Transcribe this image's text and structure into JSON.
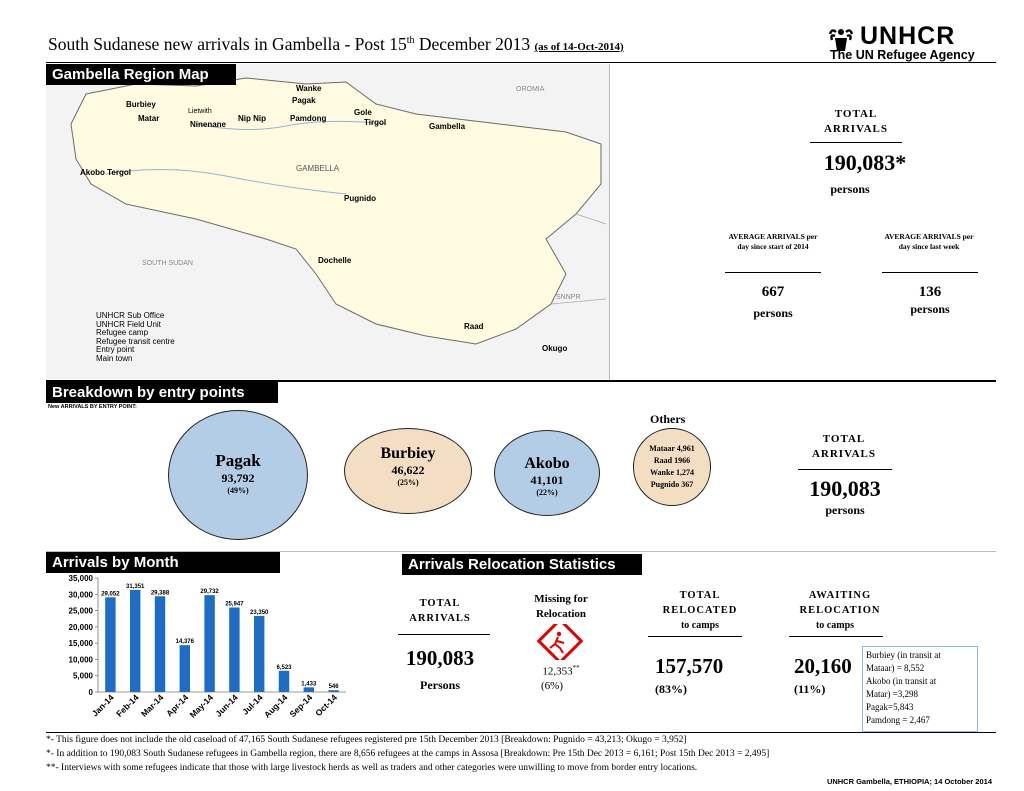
{
  "header": {
    "title_main": "South Sudanese new arrivals in Gambella - Post 15",
    "title_sup": "th",
    "title_rest": " December 2013",
    "asof": "(as of 14-Oct-2014)",
    "logo_name": "UNHCR",
    "logo_tagline": "The UN Refugee Agency"
  },
  "map": {
    "section_label": "Gambella Region Map",
    "places": {
      "burbiey": "Burbiey",
      "matar": "Matar",
      "wanke": "Wanke",
      "pagak": "Pagak",
      "lietwith": "Lietwith",
      "nip_nip": "Nip Nip",
      "ninenane": "Ninenane",
      "pamdong": "Pamdong",
      "gole": "Gole",
      "tirgol": "Tirgol",
      "gambella_town": "Gambella",
      "gambella_region": "GAMBELLA",
      "akobo_tergol": "Akobo Tergol",
      "pugnido": "Pugnido",
      "dochelle": "Dochelle",
      "raad": "Raad",
      "okugo": "Okugo",
      "oromia": "OROMIA",
      "south_sudan": "SOUTH SUDAN",
      "snnpr": "SNNPR"
    },
    "legend": [
      "UNHCR Sub Office",
      "UNHCR Field Unit",
      "Refugee camp",
      "Refugee transit centre",
      "Entry point",
      "Main town"
    ]
  },
  "summary": {
    "total_label": "TOTAL ARRIVALS",
    "total_value": "190,083",
    "total_mark": "*",
    "total_unit": "persons",
    "avg_year_label": "AVERAGE ARRIVALS per day since start of 2014",
    "avg_year_value": "667",
    "avg_year_unit": "persons",
    "avg_week_label": "AVERAGE ARRIVALS per day since last week",
    "avg_week_value": "136",
    "avg_week_unit": "persons"
  },
  "entry": {
    "section_label": "Breakdown by entry points",
    "subtitle": "New ARRIVALS BY ENTRY POINT:",
    "points": [
      {
        "name": "Pagak",
        "value": "93,792",
        "pct": "(49%)"
      },
      {
        "name": "Burbiey",
        "value": "46,622",
        "pct": "(25%)"
      },
      {
        "name": "Akobo",
        "value": "41,101",
        "pct": "(22%)"
      }
    ],
    "others_label": "Others",
    "others": [
      "Mataar 4,961",
      "Raad 1966",
      "Wanke 1,274",
      "Pugnido 367"
    ],
    "total_label": "TOTAL ARRIVALS",
    "total_value": "190,083",
    "total_unit": "persons"
  },
  "month": {
    "section_label": "Arrivals by Month"
  },
  "chart_data": {
    "type": "bar",
    "categories": [
      "Jan-14",
      "Feb-14",
      "Mar-14",
      "Apr-14",
      "May-14",
      "Jun-14",
      "Jul-14",
      "Aug-14",
      "Sep-14",
      "Oct-14"
    ],
    "values": [
      29052,
      31351,
      29388,
      14376,
      29732,
      25947,
      23350,
      6523,
      1433,
      546
    ],
    "data_labels": [
      "29,052",
      "31,351",
      "29,388",
      "14,376",
      "29,732",
      "25,947",
      "23,350",
      "6,523",
      "1,433",
      "546"
    ],
    "ylim": [
      0,
      35000
    ],
    "yticks": [
      "0",
      "5,000",
      "10,000",
      "15,000",
      "20,000",
      "25,000",
      "30,000",
      "35,000"
    ],
    "ytick_values": [
      0,
      5000,
      10000,
      15000,
      20000,
      25000,
      30000,
      35000
    ],
    "title": "",
    "xlabel": "",
    "ylabel": "",
    "color": "#1f6cc6"
  },
  "relocation": {
    "section_label": "Arrivals Relocation Statistics",
    "total_label": "TOTAL ARRIVALS",
    "total_value": "190,083",
    "total_unit": "Persons",
    "missing_label": "Missing for Relocation",
    "missing_value": "12,353",
    "missing_mark": "**",
    "missing_pct": "(6%)",
    "relocated_label": "TOTAL RELOCATED",
    "relocated_sub": "to camps",
    "relocated_value": "157,570",
    "relocated_pct": "(83%)",
    "awaiting_label": "AWAITING RELOCATION",
    "awaiting_sub": "to camps",
    "awaiting_value": "20,160",
    "awaiting_pct": "(11%)",
    "awaiting_details": [
      "Burbiey (in transit at",
      "Mataar) = 8,552",
      "Akobo (in transit at",
      "Matar) =3,298",
      "Pagak=5,843",
      "Pamdong = 2,467"
    ]
  },
  "footnotes": [
    "*- This figure does not include the old caseload of 47,165 South Sudanese refugees registered pre 15th December 2013 [Breakdown: Pugnido = 43,213; Okugo = 3,952]",
    "*- In addition to 190,083 South Sudanese refugees in Gambella region, there are 8,656 refugees at the camps in Assosa [Breakdown: Pre 15th Dec 2013 = 6,161; Post 15th Dec 2013 = 2,495]",
    "**- Interviews with some refugees indicate that those with large livestock herds as well as traders and other categories were unwilling to move from border entry locations."
  ],
  "credit": "UNHCR Gambella, ETHIOPIA; 14 October 2014"
}
